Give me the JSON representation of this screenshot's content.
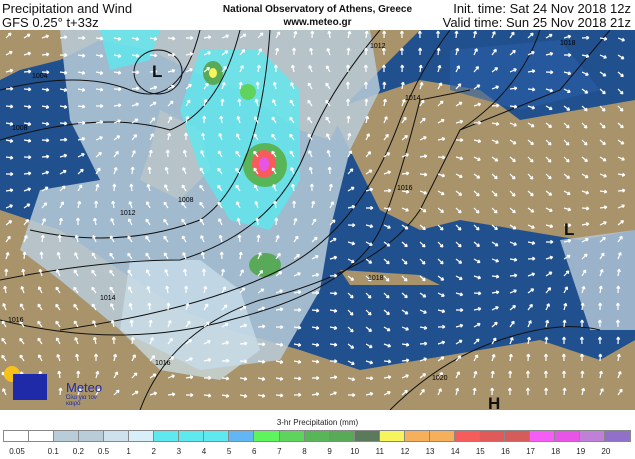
{
  "header": {
    "title_line1": "Precipitation and Wind",
    "title_line2": "GFS 0.25° t+33z",
    "center_line1": "National Observatory of Athens, Greece",
    "center_line2": "www.meteo.gr",
    "init_time": "Init. time: Sat 24 Nov 2018 12z",
    "valid_time": "Valid time: Sun 25 Nov 2018 21z"
  },
  "map": {
    "pressure_centers": [
      {
        "label": "L"
      },
      {
        "label": "L"
      },
      {
        "label": "H"
      }
    ],
    "isobar_labels": [
      "1004",
      "1008",
      "1008",
      "1012",
      "1012",
      "1014",
      "1014",
      "1016",
      "1016",
      "1016",
      "1018",
      "1018",
      "1020"
    ],
    "colors": {
      "sea": "#21508f",
      "land": "#a8936a",
      "wind_arrow": "#ffffff",
      "isobar": "#111111"
    }
  },
  "logo": {
    "name": "Meteo",
    "tagline": "Όλα για τον καιρό"
  },
  "legend": {
    "title": "3-hr Precipitation (mm)",
    "labels": [
      "0.05",
      "0.1",
      "0.2",
      "0.5",
      "1",
      "2",
      "3",
      "4",
      "5",
      "6",
      "7",
      "8",
      "9",
      "10",
      "11",
      "12",
      "13",
      "14",
      "15",
      "16",
      "17",
      "18",
      "19",
      "20"
    ],
    "colors": [
      "#ffffff",
      "#ffffff",
      "#b9ccd9",
      "#b9ccd9",
      "#cde2ee",
      "#d8eef8",
      "#5ee9ef",
      "#5ee9ef",
      "#5ee9ef",
      "#62b6f4",
      "#5ef45e",
      "#5ed45e",
      "#58b658",
      "#58aa58",
      "#5b7a5b",
      "#f6f65c",
      "#f6b05c",
      "#f6b05c",
      "#f65c5c",
      "#e05a5a",
      "#d65c5c",
      "#f65cf6",
      "#e853e8",
      "#c080d8",
      "#9070c8"
    ]
  }
}
